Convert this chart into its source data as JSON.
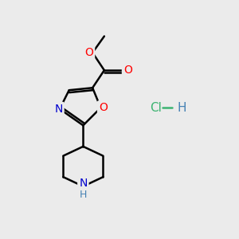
{
  "background_color": "#ebebeb",
  "bond_color": "#000000",
  "bond_width": 1.8,
  "atom_colors": {
    "O_red": "#ff0000",
    "N_blue": "#0000cd",
    "Cl_green": "#3cb371",
    "H_teal": "#4682b4",
    "C": "#000000"
  },
  "font_size_atom": 10,
  "font_size_hcl": 10,
  "figsize": [
    3.0,
    3.0
  ],
  "dpi": 100,
  "xlim": [
    0,
    10
  ],
  "ylim": [
    0,
    10
  ]
}
